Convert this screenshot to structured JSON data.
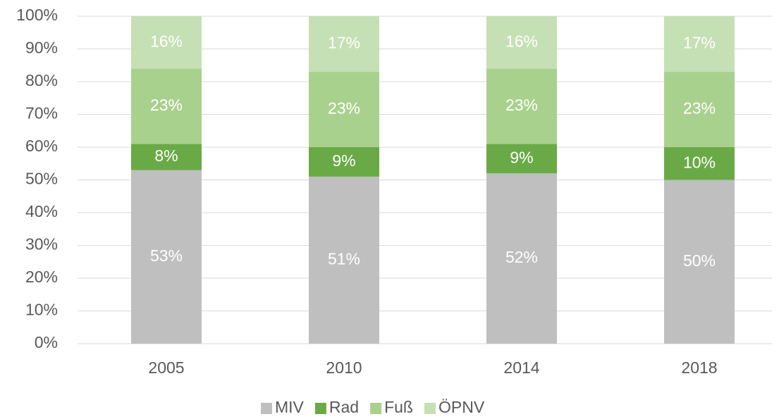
{
  "chart_data": {
    "type": "stacked_bar",
    "categories": [
      "2005",
      "2010",
      "2014",
      "2018"
    ],
    "series": [
      {
        "name": "MIV",
        "color": "#bfbfbf",
        "values": [
          53,
          51,
          52,
          50
        ],
        "value_labels": [
          "53%",
          "51%",
          "52%",
          "50%"
        ]
      },
      {
        "name": "Rad",
        "color": "#6aaa46",
        "values": [
          8,
          9,
          9,
          10
        ],
        "value_labels": [
          "8%",
          "9%",
          "9%",
          "10%"
        ]
      },
      {
        "name": "Fuß",
        "color": "#a9d18e",
        "values": [
          23,
          23,
          23,
          23
        ],
        "value_labels": [
          "23%",
          "23%",
          "23%",
          "23%"
        ]
      },
      {
        "name": "ÖPNV",
        "color": "#c5e0b4",
        "values": [
          16,
          17,
          16,
          17
        ],
        "value_labels": [
          "16%",
          "17%",
          "16%",
          "17%"
        ]
      }
    ],
    "ylim": [
      0,
      100
    ],
    "yticks": [
      {
        "value": 0,
        "label": "0%"
      },
      {
        "value": 10,
        "label": "10%"
      },
      {
        "value": 20,
        "label": "20%"
      },
      {
        "value": 30,
        "label": "30%"
      },
      {
        "value": 40,
        "label": "40%"
      },
      {
        "value": 50,
        "label": "50%"
      },
      {
        "value": 60,
        "label": "60%"
      },
      {
        "value": 70,
        "label": "70%"
      },
      {
        "value": 80,
        "label": "80%"
      },
      {
        "value": 90,
        "label": "90%"
      },
      {
        "value": 100,
        "label": "100%"
      }
    ],
    "grid": true,
    "legend": "bottom"
  }
}
